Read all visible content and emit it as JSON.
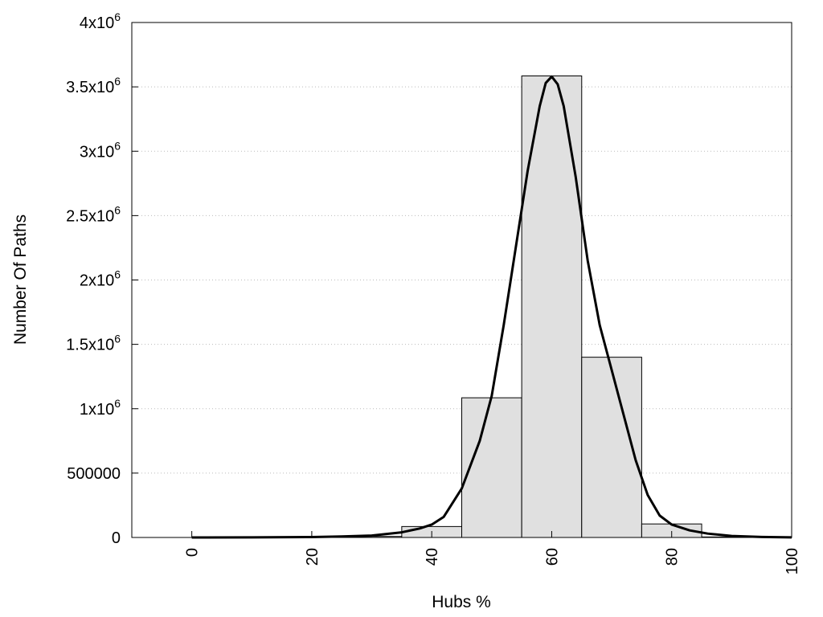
{
  "chart_data": {
    "type": "bar",
    "xlabel": "Hubs %",
    "ylabel": "Number Of Paths",
    "xlim": [
      -10,
      100
    ],
    "ylim": [
      0,
      4000000
    ],
    "grid": "horizontal-dotted",
    "bar_color": "#e0e0e0",
    "line_color": "#000000",
    "x_ticks": [
      {
        "value": 0,
        "label": "0"
      },
      {
        "value": 20,
        "label": "20"
      },
      {
        "value": 40,
        "label": "40"
      },
      {
        "value": 60,
        "label": "60"
      },
      {
        "value": 80,
        "label": "80"
      },
      {
        "value": 100,
        "label": "100"
      }
    ],
    "y_ticks": [
      {
        "value": 0,
        "label": "0",
        "sup": ""
      },
      {
        "value": 500000,
        "label": "500000",
        "sup": ""
      },
      {
        "value": 1000000,
        "label": "1x10",
        "sup": "6"
      },
      {
        "value": 1500000,
        "label": "1.5x10",
        "sup": "6"
      },
      {
        "value": 2000000,
        "label": "2x10",
        "sup": "6"
      },
      {
        "value": 2500000,
        "label": "2.5x10",
        "sup": "6"
      },
      {
        "value": 3000000,
        "label": "3x10",
        "sup": "6"
      },
      {
        "value": 3500000,
        "label": "3.5x10",
        "sup": "6"
      },
      {
        "value": 4000000,
        "label": "4x10",
        "sup": "6"
      }
    ],
    "bars": [
      {
        "x_start": 0,
        "x_end": 5,
        "value": 0
      },
      {
        "x_start": 5,
        "x_end": 15,
        "value": 0
      },
      {
        "x_start": 15,
        "x_end": 25,
        "value": 2000
      },
      {
        "x_start": 25,
        "x_end": 35,
        "value": 8000
      },
      {
        "x_start": 35,
        "x_end": 45,
        "value": 85000
      },
      {
        "x_start": 45,
        "x_end": 55,
        "value": 1085000
      },
      {
        "x_start": 55,
        "x_end": 65,
        "value": 3585000
      },
      {
        "x_start": 65,
        "x_end": 75,
        "value": 1400000
      },
      {
        "x_start": 75,
        "x_end": 85,
        "value": 105000
      },
      {
        "x_start": 85,
        "x_end": 95,
        "value": 4000
      }
    ],
    "curve": {
      "x": [
        0,
        10,
        20,
        25,
        30,
        35,
        38,
        40,
        42,
        45,
        48,
        50,
        52,
        54,
        56,
        58,
        59,
        60,
        61,
        62,
        64,
        66,
        68,
        70,
        72,
        74,
        76,
        78,
        80,
        83,
        86,
        90,
        95,
        100
      ],
      "y": [
        0,
        1000,
        3000,
        8000,
        15000,
        40000,
        70000,
        100000,
        160000,
        380000,
        750000,
        1100000,
        1650000,
        2250000,
        2850000,
        3350000,
        3530000,
        3580000,
        3520000,
        3350000,
        2800000,
        2150000,
        1650000,
        1300000,
        950000,
        600000,
        330000,
        170000,
        100000,
        55000,
        30000,
        12000,
        4000,
        1000
      ]
    }
  }
}
